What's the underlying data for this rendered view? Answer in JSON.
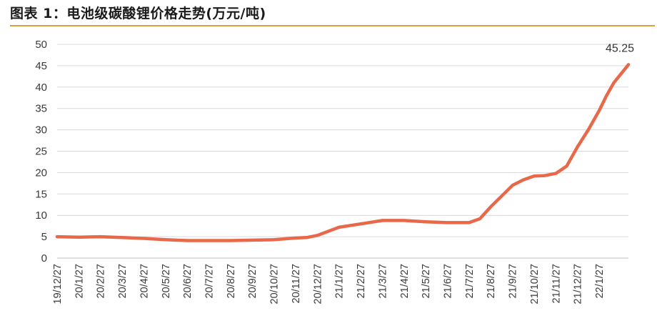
{
  "header": {
    "title": "图表 1：电池级碳酸锂价格走势(万元/吨)"
  },
  "chart_data": {
    "type": "line",
    "title": "电池级碳酸锂价格走势(万元/吨)",
    "xlabel": "",
    "ylabel": "",
    "ylim": [
      0,
      50
    ],
    "yticks": [
      0,
      5,
      10,
      15,
      20,
      25,
      30,
      35,
      40,
      45,
      50
    ],
    "grid": "horizontal",
    "legend": "none",
    "line_color": "#e8684a",
    "x_tick_labels": [
      "19/12/27",
      "20/1/27",
      "20/2/27",
      "20/3/27",
      "20/4/27",
      "20/5/27",
      "20/6/27",
      "20/7/27",
      "20/8/27",
      "20/9/27",
      "20/10/27",
      "20/11/27",
      "20/12/27",
      "21/1/27",
      "21/2/27",
      "21/3/27",
      "21/4/27",
      "21/5/27",
      "21/6/27",
      "21/7/27",
      "21/8/27",
      "21/9/27",
      "21/10/27",
      "21/11/27",
      "21/12/27",
      "22/1/27"
    ],
    "series": [
      {
        "points": [
          [
            "19/12/27",
            5.0
          ],
          [
            "20/1/27",
            4.9
          ],
          [
            "20/2/27",
            5.0
          ],
          [
            "20/3/27",
            4.8
          ],
          [
            "20/4/27",
            4.6
          ],
          [
            "20/5/27",
            4.3
          ],
          [
            "20/6/27",
            4.1
          ],
          [
            "20/7/27",
            4.1
          ],
          [
            "20/8/27",
            4.1
          ],
          [
            "20/9/27",
            4.2
          ],
          [
            "20/10/27",
            4.3
          ],
          [
            "20/11/27",
            4.7
          ],
          [
            "20/11/27",
            4.8
          ],
          [
            "20/12/27",
            5.3
          ],
          [
            "21/1/27",
            7.2
          ],
          [
            "21/2/27",
            8.0
          ],
          [
            "21/3/27",
            8.8
          ],
          [
            "21/4/27",
            8.8
          ],
          [
            "21/5/27",
            8.5
          ],
          [
            "21/6/27",
            8.3
          ],
          [
            "21/7/27",
            8.3
          ],
          [
            "21/7/27",
            9.2
          ],
          [
            "21/8/27",
            12.0
          ],
          [
            "21/8/27",
            14.5
          ],
          [
            "21/9/27",
            17.0
          ],
          [
            "21/9/27",
            18.3
          ],
          [
            "21/10/27",
            19.2
          ],
          [
            "21/10/27",
            19.3
          ],
          [
            "21/11/27",
            19.8
          ],
          [
            "21/11/27",
            21.5
          ],
          [
            "21/12/27",
            26.0
          ],
          [
            "21/12/27",
            30.0
          ],
          [
            "22/1/27",
            34.5
          ],
          [
            "22/1/27",
            38.0
          ],
          [
            "22/1/27",
            41.0
          ],
          [
            "22/1/27",
            45.25
          ]
        ]
      }
    ],
    "annotations": [
      {
        "text": "45.25",
        "value": 45.25
      }
    ]
  }
}
